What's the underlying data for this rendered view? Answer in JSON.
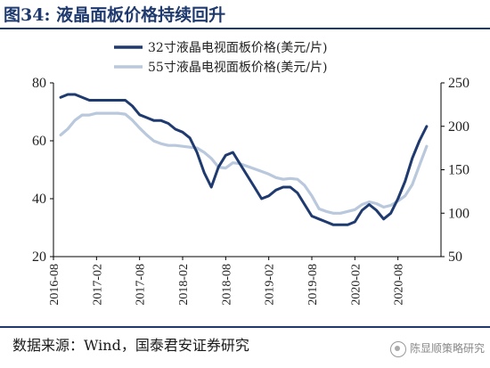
{
  "figure": {
    "title": "图34: 液晶面板价格持续回升",
    "source": "数据来源：Wind，国泰君安证券研究",
    "watermark": "陈显顺策略研究"
  },
  "chart_data": {
    "type": "line",
    "x_tick_labels": [
      "2016-08",
      "2017-02",
      "2017-08",
      "2018-02",
      "2018-08",
      "2019-02",
      "2019-08",
      "2020-02",
      "2020-08"
    ],
    "x": [
      "2016-09",
      "2016-10",
      "2016-11",
      "2016-12",
      "2017-01",
      "2017-02",
      "2017-03",
      "2017-04",
      "2017-05",
      "2017-06",
      "2017-07",
      "2017-08",
      "2017-09",
      "2017-10",
      "2017-11",
      "2017-12",
      "2018-01",
      "2018-02",
      "2018-03",
      "2018-04",
      "2018-05",
      "2018-06",
      "2018-07",
      "2018-08",
      "2018-09",
      "2018-10",
      "2018-11",
      "2018-12",
      "2019-01",
      "2019-02",
      "2019-03",
      "2019-04",
      "2019-05",
      "2019-06",
      "2019-07",
      "2019-08",
      "2019-09",
      "2019-10",
      "2019-11",
      "2019-12",
      "2020-01",
      "2020-02",
      "2020-03",
      "2020-04",
      "2020-05",
      "2020-06",
      "2020-07",
      "2020-08",
      "2020-09",
      "2020-10",
      "2020-11",
      "2020-12"
    ],
    "left_axis": {
      "ylim": [
        20,
        80
      ],
      "ticks": [
        20,
        40,
        60,
        80
      ]
    },
    "right_axis": {
      "ylim": [
        50,
        250
      ],
      "ticks": [
        50,
        100,
        150,
        200,
        250
      ]
    },
    "legend_position": "top-center",
    "series": [
      {
        "name": "32寸液晶电视面板价格(美元/片)",
        "axis": "left",
        "color": "#1f3a6e",
        "values": [
          75,
          76,
          76,
          75,
          74,
          74,
          74,
          74,
          74,
          74,
          72,
          69,
          68,
          67,
          67,
          66,
          64,
          63,
          61,
          56,
          49,
          44,
          51,
          55,
          56,
          52,
          48,
          44,
          40,
          41,
          43,
          44,
          44,
          42,
          38,
          34,
          33,
          32,
          31,
          31,
          31,
          32,
          36,
          38,
          36,
          33,
          35,
          40,
          46,
          54,
          60,
          65
        ]
      },
      {
        "name": "55寸液晶电视面板价格(美元/片)",
        "axis": "right",
        "color": "#b9c8dc",
        "values": [
          190,
          197,
          207,
          213,
          213,
          215,
          215,
          215,
          215,
          214,
          207,
          198,
          190,
          183,
          180,
          178,
          178,
          177,
          176,
          175,
          170,
          163,
          153,
          152,
          158,
          157,
          154,
          151,
          148,
          145,
          141,
          139,
          140,
          139,
          132,
          120,
          105,
          102,
          100,
          100,
          102,
          104,
          110,
          113,
          111,
          107,
          109,
          114,
          120,
          133,
          155,
          177
        ]
      }
    ]
  }
}
